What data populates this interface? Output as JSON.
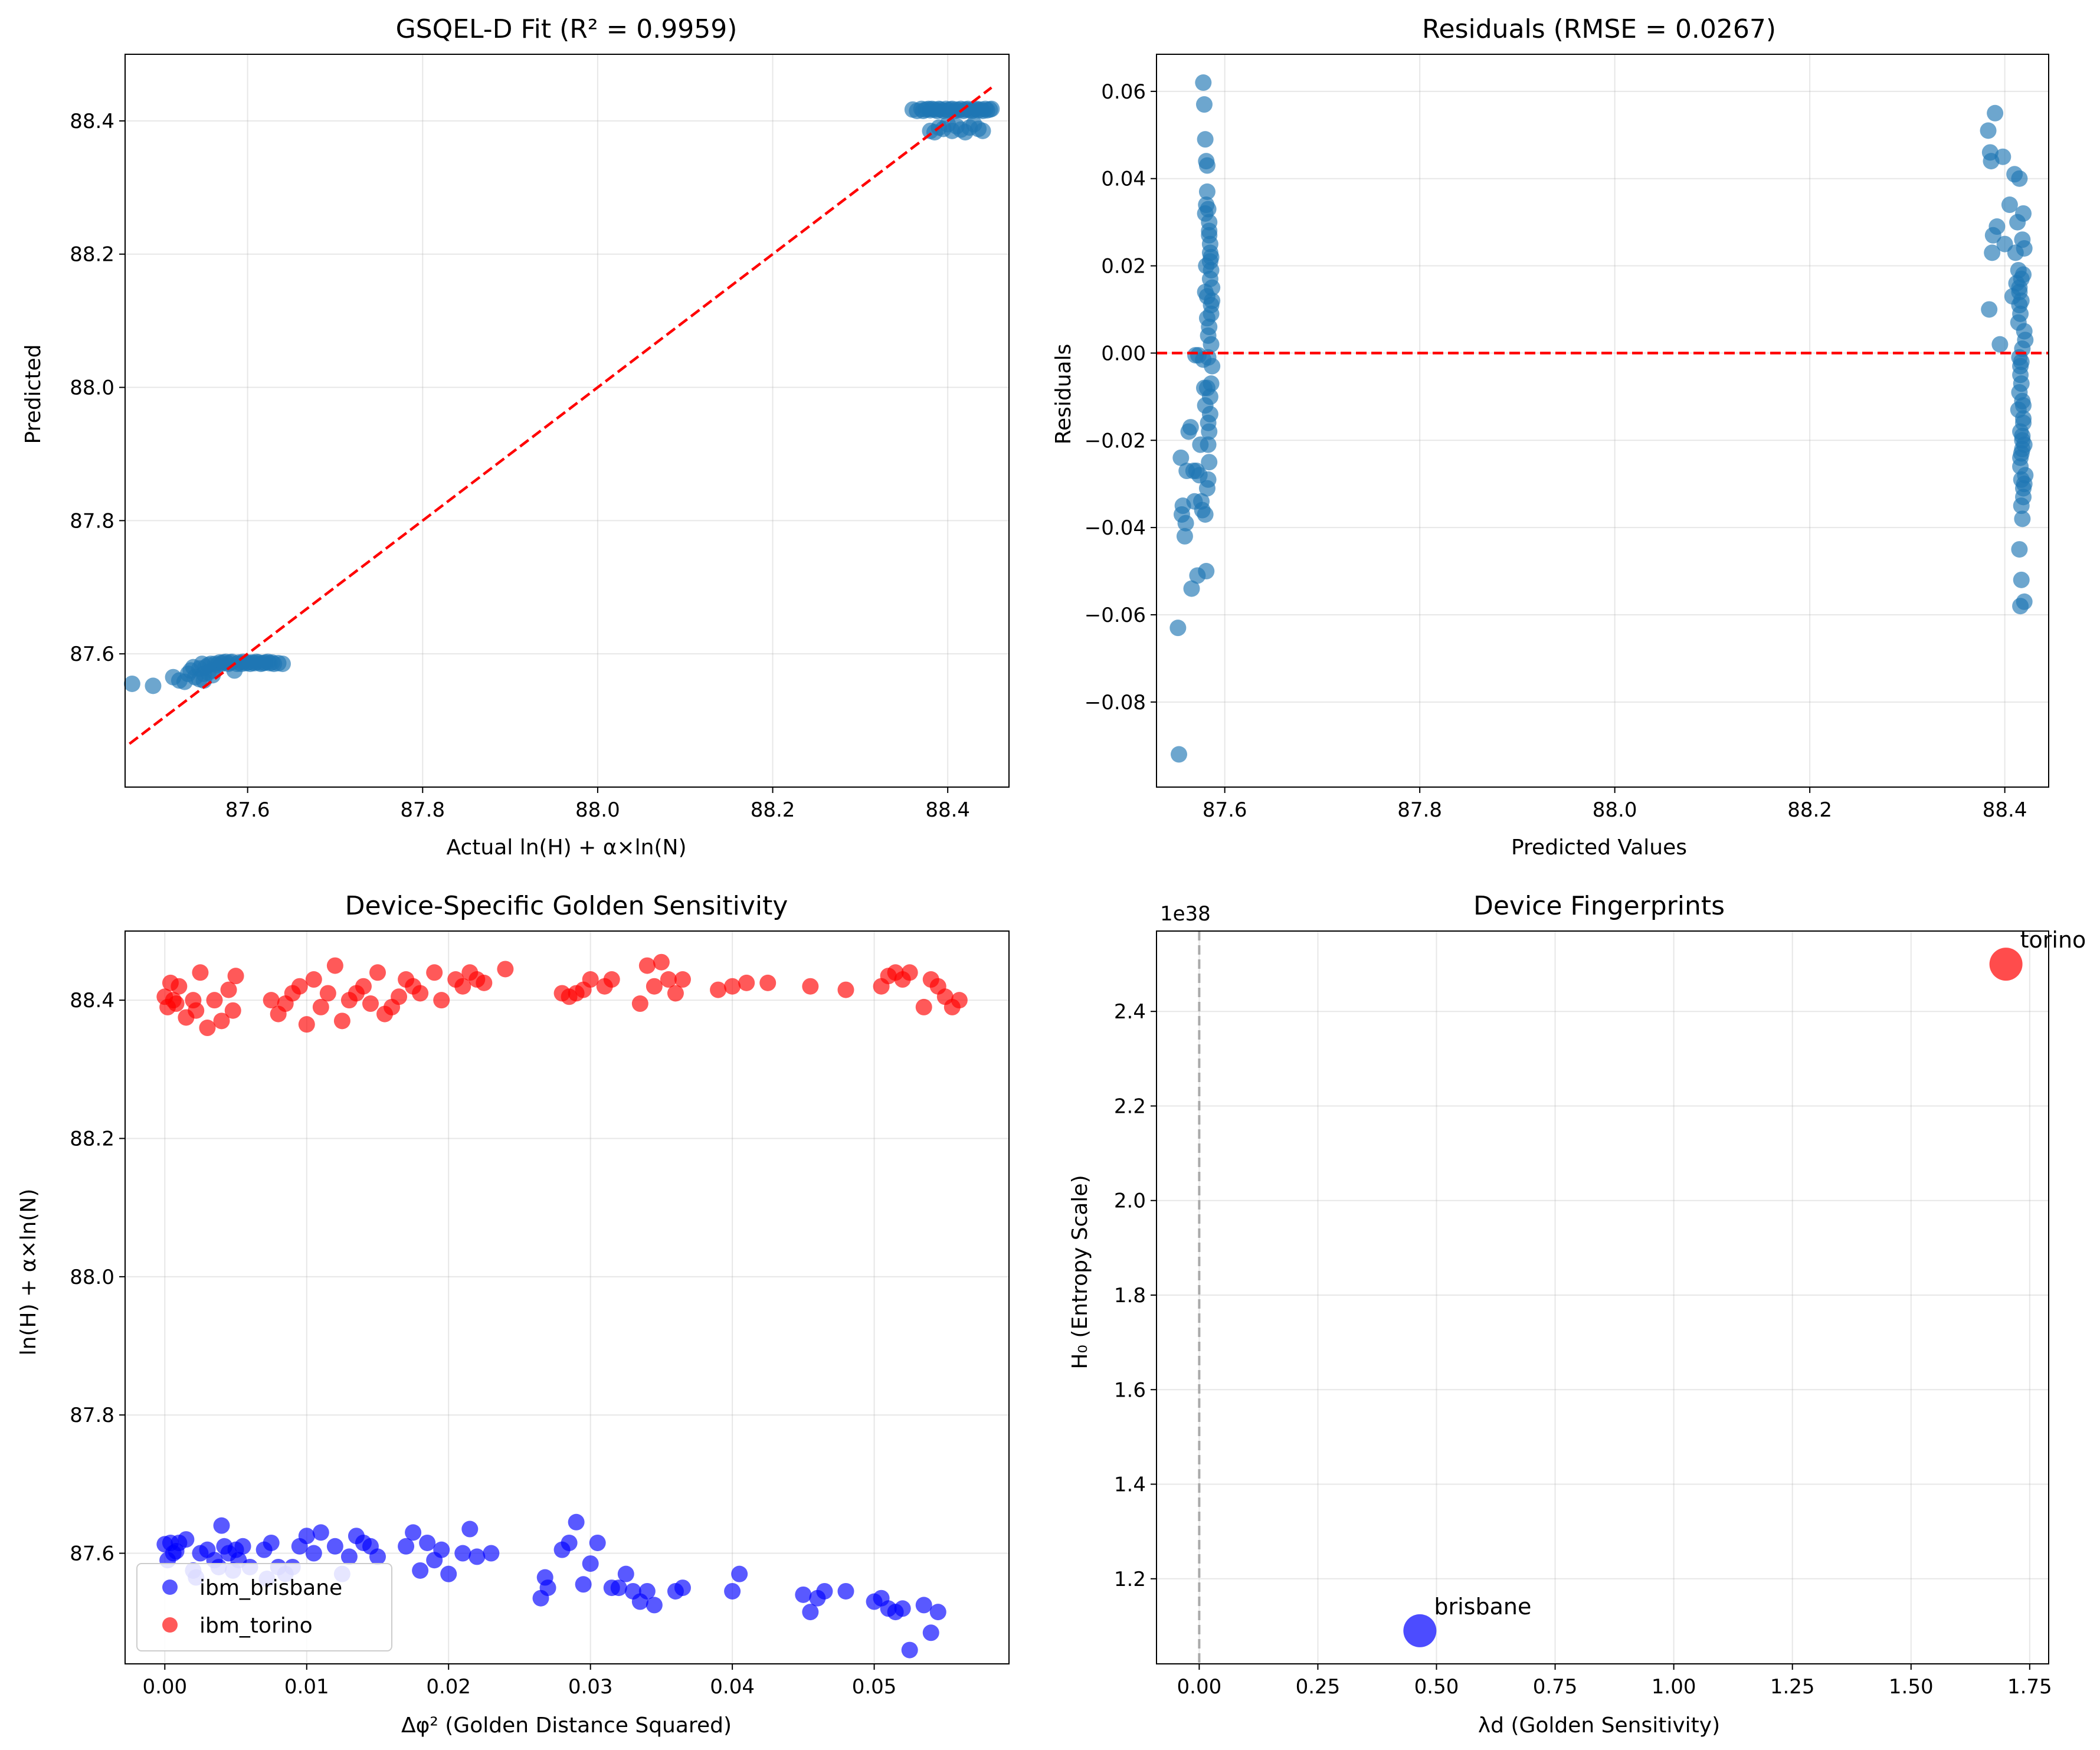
{
  "chart_data": [
    {
      "type": "scatter",
      "title": "GSQEL-D Fit (R² = 0.9959)",
      "xlabel": "Actual ln(H) + α×ln(N)",
      "ylabel": "Predicted",
      "xlim": [
        87.46,
        88.47
      ],
      "ylim": [
        87.4,
        88.5
      ],
      "xticks": [
        87.6,
        87.8,
        88.0,
        88.2,
        88.4
      ],
      "xtick_labels": [
        "87.6",
        "87.8",
        "88.0",
        "88.2",
        "88.4"
      ],
      "yticks": [
        87.6,
        87.8,
        88.0,
        88.2,
        88.4
      ],
      "ytick_labels": [
        "87.6",
        "87.8",
        "88.0",
        "88.2",
        "88.4"
      ],
      "grid": true,
      "colors": {
        "points": "#1f77b4",
        "reference_line": "#ff0000"
      },
      "reference_line": {
        "style": "dashed",
        "x": [
          87.465,
          88.45
        ],
        "y": [
          87.465,
          88.45
        ]
      },
      "series": [
        {
          "x": [
            87.468,
            87.492,
            87.515,
            87.522,
            87.528,
            87.532,
            87.535,
            87.538,
            87.54,
            87.545,
            87.548,
            87.55,
            87.552,
            87.555,
            87.558,
            87.56,
            87.563,
            87.565,
            87.568,
            87.57,
            87.572,
            87.575,
            87.578,
            87.58,
            87.582,
            87.585,
            87.588,
            87.59,
            87.593,
            87.595,
            87.598,
            87.6,
            87.603,
            87.605,
            87.608,
            87.61,
            87.613,
            87.615,
            87.618,
            87.62,
            87.623,
            87.625,
            87.628,
            87.63,
            87.635,
            87.64,
            87.545,
            87.55,
            87.555,
            87.56,
            88.36,
            88.365,
            88.37,
            88.372,
            88.375,
            88.378,
            88.38,
            88.382,
            88.385,
            88.388,
            88.39,
            88.392,
            88.395,
            88.398,
            88.4,
            88.403,
            88.405,
            88.408,
            88.41,
            88.413,
            88.415,
            88.418,
            88.42,
            88.423,
            88.425,
            88.428,
            88.43,
            88.433,
            88.435,
            88.438,
            88.44,
            88.443,
            88.445,
            88.448,
            88.45,
            88.38,
            88.385,
            88.39,
            88.395,
            88.4,
            88.405,
            88.41,
            88.415,
            88.42,
            88.425,
            88.43,
            88.435,
            88.44
          ],
          "y": [
            87.555,
            87.552,
            87.565,
            87.56,
            87.558,
            87.57,
            87.575,
            87.58,
            87.565,
            87.578,
            87.585,
            87.56,
            87.58,
            87.583,
            87.585,
            87.575,
            87.585,
            87.583,
            87.587,
            87.585,
            87.587,
            87.588,
            87.585,
            87.587,
            87.588,
            87.575,
            87.585,
            87.587,
            87.585,
            87.588,
            87.586,
            87.587,
            87.585,
            87.587,
            87.586,
            87.588,
            87.587,
            87.585,
            87.586,
            87.587,
            87.588,
            87.586,
            87.587,
            87.585,
            87.586,
            87.585,
            87.562,
            87.57,
            87.572,
            87.568,
            88.417,
            88.415,
            88.418,
            88.415,
            88.417,
            88.418,
            88.416,
            88.418,
            88.417,
            88.415,
            88.418,
            88.417,
            88.415,
            88.418,
            88.416,
            88.417,
            88.418,
            88.415,
            88.417,
            88.416,
            88.418,
            88.415,
            88.417,
            88.418,
            88.416,
            88.415,
            88.417,
            88.418,
            88.416,
            88.417,
            88.415,
            88.418,
            88.416,
            88.417,
            88.418,
            88.385,
            88.383,
            88.39,
            88.388,
            88.395,
            88.385,
            88.392,
            88.387,
            88.383,
            88.39,
            88.395,
            88.388,
            88.385
          ]
        }
      ]
    },
    {
      "type": "scatter",
      "title": "Residuals (RMSE = 0.0267)",
      "xlabel": "Predicted Values",
      "ylabel": "Residuals",
      "xlim": [
        87.53,
        88.445
      ],
      "ylim": [
        -0.0995,
        0.0685
      ],
      "xticks": [
        87.6,
        87.8,
        88.0,
        88.2,
        88.4
      ],
      "xtick_labels": [
        "87.6",
        "87.8",
        "88.0",
        "88.2",
        "88.4"
      ],
      "yticks": [
        0.06,
        0.04,
        0.02,
        0.0,
        -0.02,
        -0.04,
        -0.06,
        -0.08
      ],
      "ytick_labels": [
        "0.06",
        "0.04",
        "0.02",
        "0.00",
        "−0.02",
        "−0.04",
        "−0.06",
        "−0.08"
      ],
      "grid": true,
      "colors": {
        "points": "#1f77b4",
        "reference_line": "#ff0000"
      },
      "reference_line": {
        "style": "dashed",
        "y": 0.0
      },
      "series": [
        {
          "x": [
            87.552,
            87.553,
            87.555,
            87.556,
            87.557,
            87.559,
            87.56,
            87.561,
            87.563,
            87.565,
            87.566,
            87.568,
            87.569,
            87.57,
            87.571,
            87.572,
            87.573,
            87.574,
            87.575,
            87.576,
            87.577,
            87.578,
            87.578,
            87.579,
            87.579,
            87.58,
            87.58,
            87.581,
            87.581,
            87.582,
            87.582,
            87.582,
            87.583,
            87.583,
            87.583,
            87.584,
            87.584,
            87.584,
            87.585,
            87.585,
            87.585,
            87.586,
            87.586,
            87.586,
            87.587,
            87.587,
            87.587,
            87.58,
            87.581,
            87.582,
            87.583,
            87.584,
            87.585,
            87.586,
            87.58,
            87.582,
            87.584,
            87.586,
            87.583,
            87.585,
            87.581,
            87.584,
            87.586,
            87.582,
            87.585,
            87.58,
            87.583,
            88.383,
            88.384,
            88.385,
            88.386,
            88.387,
            88.388,
            88.39,
            88.392,
            88.395,
            88.398,
            88.4,
            88.405,
            88.408,
            88.41,
            88.411,
            88.412,
            88.413,
            88.414,
            88.415,
            88.415,
            88.416,
            88.416,
            88.417,
            88.417,
            88.418,
            88.418,
            88.419,
            88.419,
            88.42,
            88.42,
            88.421,
            88.421,
            88.415,
            88.416,
            88.417,
            88.418,
            88.419,
            88.42,
            88.416,
            88.417,
            88.418,
            88.419,
            88.414,
            88.415,
            88.416,
            88.417,
            88.418,
            88.42,
            88.415,
            88.417,
            88.419,
            88.416,
            88.418,
            88.414,
            88.417,
            88.419,
            88.415,
            88.42,
            88.416,
            88.418,
            88.415,
            88.417,
            88.419
          ],
          "y": [
            -0.063,
            -0.092,
            -0.024,
            -0.037,
            -0.035,
            -0.042,
            -0.039,
            -0.027,
            -0.018,
            -0.017,
            -0.054,
            -0.027,
            -0.034,
            -0.0005,
            -0.027,
            -0.051,
            -0.0005,
            -0.028,
            -0.021,
            -0.034,
            -0.036,
            -0.0015,
            0.062,
            -0.008,
            0.057,
            0.049,
            -0.037,
            0.044,
            -0.05,
            0.043,
            -0.031,
            0.037,
            -0.029,
            0.033,
            -0.021,
            0.03,
            -0.018,
            0.027,
            -0.014,
            0.025,
            -0.01,
            0.022,
            -0.007,
            0.019,
            -0.003,
            0.015,
            0.012,
            0.032,
            0.02,
            0.008,
            0.004,
            0.028,
            0.017,
            0.011,
            -0.012,
            0.013,
            0.006,
            0.002,
            -0.016,
            0.023,
            0.034,
            -0.025,
            0.009,
            -0.008,
            0.021,
            0.014,
            -0.001,
            0.051,
            0.01,
            0.046,
            0.044,
            0.023,
            0.027,
            0.055,
            0.029,
            0.002,
            0.045,
            0.025,
            0.034,
            0.013,
            0.041,
            0.023,
            0.016,
            0.03,
            0.019,
            0.04,
            -0.001,
            -0.003,
            0.009,
            -0.007,
            0.012,
            -0.011,
            0.026,
            -0.015,
            0.032,
            -0.021,
            0.024,
            -0.028,
            0.003,
            -0.045,
            -0.058,
            -0.052,
            -0.038,
            -0.033,
            -0.03,
            -0.026,
            -0.023,
            -0.019,
            -0.016,
            -0.013,
            -0.009,
            -0.005,
            -0.002,
            0.001,
            0.005,
            0.014,
            0.017,
            0.018,
            -0.024,
            -0.022,
            0.007,
            -0.035,
            -0.031,
            0.011,
            -0.057,
            -0.018,
            -0.02,
            0.015,
            -0.029,
            -0.012
          ]
        }
      ]
    },
    {
      "type": "scatter",
      "title": "Device-Specific Golden Sensitivity",
      "xlabel": "Δφ² (Golden Distance Squared)",
      "ylabel": "ln(H) + α×ln(N)",
      "xlim": [
        -0.0028,
        0.0595
      ],
      "ylim": [
        87.44,
        88.5
      ],
      "xticks": [
        0.0,
        0.01,
        0.02,
        0.03,
        0.04,
        0.05
      ],
      "xtick_labels": [
        "0.00",
        "0.01",
        "0.02",
        "0.03",
        "0.04",
        "0.05"
      ],
      "yticks": [
        87.6,
        87.8,
        88.0,
        88.2,
        88.4
      ],
      "ytick_labels": [
        "87.6",
        "87.8",
        "88.0",
        "88.2",
        "88.4"
      ],
      "grid": true,
      "legend": {
        "position": "lower-left",
        "entries": [
          "ibm_brisbane",
          "ibm_torino"
        ]
      },
      "series": [
        {
          "name": "ibm_brisbane",
          "color": "#0000ff",
          "x": [
            0.0,
            0.0002,
            0.0004,
            0.0006,
            0.0008,
            0.001,
            0.0015,
            0.002,
            0.0022,
            0.0025,
            0.003,
            0.0035,
            0.0038,
            0.004,
            0.0042,
            0.0045,
            0.0048,
            0.005,
            0.0052,
            0.0055,
            0.006,
            0.007,
            0.0072,
            0.0075,
            0.008,
            0.0085,
            0.009,
            0.0095,
            0.01,
            0.0105,
            0.011,
            0.012,
            0.0125,
            0.013,
            0.0135,
            0.014,
            0.0145,
            0.015,
            0.017,
            0.0175,
            0.018,
            0.0185,
            0.019,
            0.0195,
            0.02,
            0.021,
            0.0215,
            0.022,
            0.023,
            0.0265,
            0.0268,
            0.027,
            0.028,
            0.0285,
            0.029,
            0.0295,
            0.03,
            0.0305,
            0.0315,
            0.032,
            0.0325,
            0.033,
            0.0335,
            0.034,
            0.0345,
            0.036,
            0.0365,
            0.04,
            0.0405,
            0.045,
            0.0455,
            0.046,
            0.0465,
            0.048,
            0.05,
            0.0505,
            0.051,
            0.0515,
            0.052,
            0.0525,
            0.0535,
            0.054,
            0.0545
          ],
          "y": [
            87.613,
            87.59,
            87.615,
            87.6,
            87.603,
            87.615,
            87.62,
            87.575,
            87.565,
            87.6,
            87.605,
            87.59,
            87.58,
            87.64,
            87.61,
            87.6,
            87.575,
            87.605,
            87.59,
            87.61,
            87.58,
            87.605,
            87.563,
            87.615,
            87.58,
            87.57,
            87.58,
            87.61,
            87.625,
            87.6,
            87.63,
            87.61,
            87.57,
            87.595,
            87.625,
            87.615,
            87.61,
            87.595,
            87.61,
            87.63,
            87.575,
            87.615,
            87.59,
            87.605,
            87.57,
            87.6,
            87.635,
            87.595,
            87.6,
            87.535,
            87.565,
            87.55,
            87.605,
            87.615,
            87.645,
            87.555,
            87.585,
            87.615,
            87.55,
            87.55,
            87.57,
            87.545,
            87.53,
            87.545,
            87.525,
            87.545,
            87.55,
            87.545,
            87.57,
            87.54,
            87.515,
            87.535,
            87.545,
            87.545,
            87.53,
            87.535,
            87.52,
            87.515,
            87.52,
            87.46,
            87.525,
            87.485,
            87.515
          ]
        },
        {
          "name": "ibm_torino",
          "color": "#ff0000",
          "x": [
            0.0,
            0.0002,
            0.0004,
            0.0006,
            0.0008,
            0.001,
            0.0015,
            0.002,
            0.0022,
            0.0025,
            0.003,
            0.0035,
            0.004,
            0.0045,
            0.0048,
            0.005,
            0.0075,
            0.008,
            0.0085,
            0.009,
            0.0095,
            0.01,
            0.0105,
            0.011,
            0.0115,
            0.012,
            0.0125,
            0.013,
            0.0135,
            0.014,
            0.0145,
            0.015,
            0.0155,
            0.016,
            0.0165,
            0.017,
            0.0175,
            0.018,
            0.019,
            0.0195,
            0.0205,
            0.021,
            0.0215,
            0.022,
            0.0225,
            0.024,
            0.028,
            0.0285,
            0.029,
            0.0295,
            0.03,
            0.031,
            0.0315,
            0.0335,
            0.034,
            0.0345,
            0.035,
            0.0355,
            0.036,
            0.0365,
            0.039,
            0.04,
            0.041,
            0.0425,
            0.0455,
            0.048,
            0.0505,
            0.051,
            0.0515,
            0.052,
            0.0525,
            0.0535,
            0.054,
            0.0545,
            0.055,
            0.0555,
            0.056
          ],
          "y": [
            88.405,
            88.39,
            88.425,
            88.4,
            88.395,
            88.42,
            88.375,
            88.4,
            88.385,
            88.44,
            88.36,
            88.4,
            88.37,
            88.415,
            88.385,
            88.435,
            88.4,
            88.38,
            88.395,
            88.41,
            88.42,
            88.365,
            88.43,
            88.39,
            88.41,
            88.45,
            88.37,
            88.4,
            88.41,
            88.42,
            88.395,
            88.44,
            88.38,
            88.39,
            88.405,
            88.43,
            88.42,
            88.41,
            88.44,
            88.4,
            88.43,
            88.42,
            88.44,
            88.43,
            88.425,
            88.445,
            88.41,
            88.405,
            88.41,
            88.415,
            88.43,
            88.42,
            88.43,
            88.395,
            88.45,
            88.42,
            88.455,
            88.43,
            88.41,
            88.43,
            88.415,
            88.42,
            88.425,
            88.425,
            88.42,
            88.415,
            88.42,
            88.435,
            88.44,
            88.43,
            88.44,
            88.39,
            88.43,
            88.42,
            88.405,
            88.39,
            88.4
          ]
        }
      ]
    },
    {
      "type": "scatter",
      "title": "Device Fingerprints",
      "xlabel": "λd (Golden Sensitivity)",
      "ylabel": "H₀ (Entropy Scale)",
      "offset_label": "1e38",
      "xlim": [
        -0.09,
        1.79
      ],
      "ylim": [
        1.02,
        2.57
      ],
      "xticks": [
        0.0,
        0.25,
        0.5,
        0.75,
        1.0,
        1.25,
        1.5,
        1.75
      ],
      "xtick_labels": [
        "0.00",
        "0.25",
        "0.50",
        "0.75",
        "1.00",
        "1.25",
        "1.50",
        "1.75"
      ],
      "yticks": [
        1.2,
        1.4,
        1.6,
        1.8,
        2.0,
        2.2,
        2.4
      ],
      "ytick_labels": [
        "1.2",
        "1.4",
        "1.6",
        "1.8",
        "2.0",
        "2.2",
        "2.4"
      ],
      "grid": true,
      "reference_line": {
        "style": "dashed",
        "x": 0.0,
        "color": "#aaaaaa"
      },
      "points": [
        {
          "label": "brisbane",
          "x": 0.465,
          "y": 1.09,
          "color": "#0000ff"
        },
        {
          "label": "torino",
          "x": 1.7,
          "y": 2.5,
          "color": "#ff0000"
        }
      ]
    }
  ]
}
